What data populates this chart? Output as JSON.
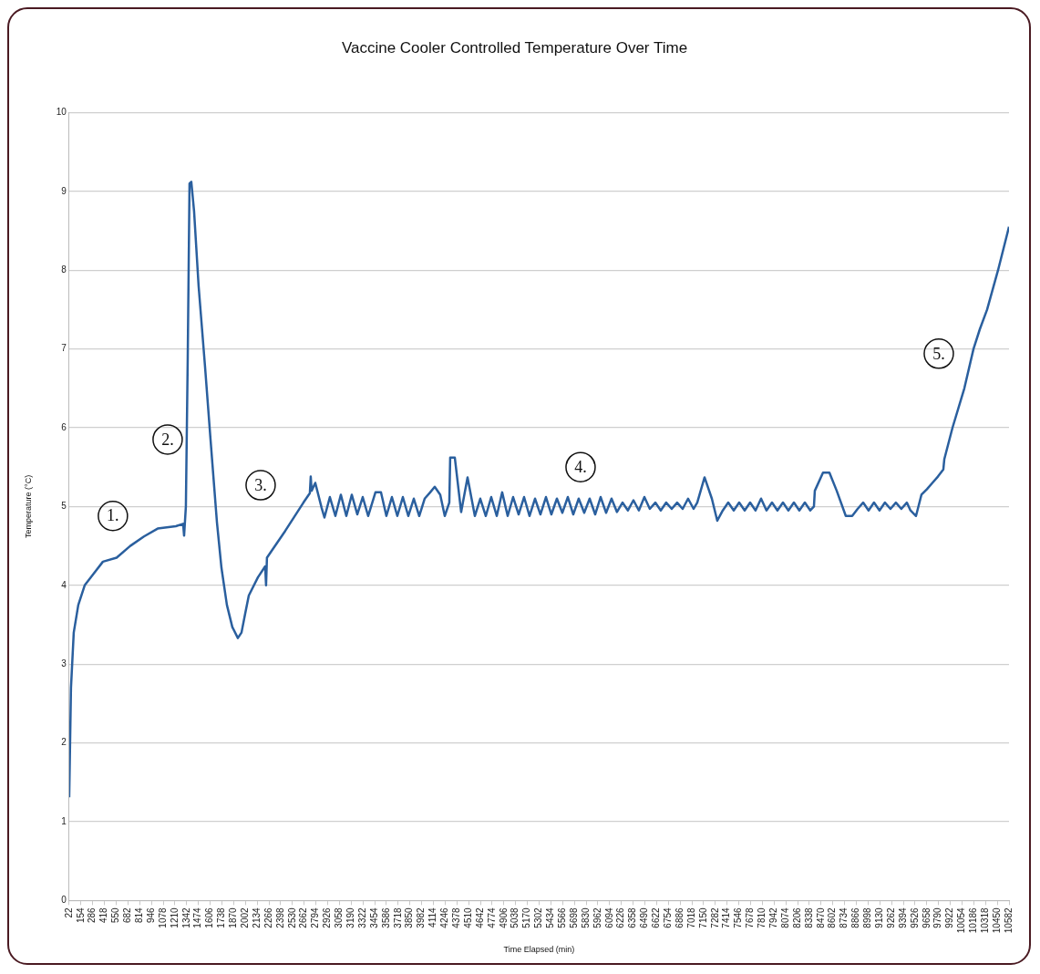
{
  "chart_data": {
    "type": "line",
    "title": "Vaccine Cooler Controlled Temperature Over Time",
    "xlabel": "Time Elapsed (min)",
    "ylabel": "Temperature (°C)",
    "x": [
      22,
      42,
      73,
      124,
      196,
      299,
      401,
      555,
      708,
      862,
      1016,
      1220,
      1302,
      1313,
      1333,
      1354,
      1374,
      1394,
      1425,
      1476,
      1548,
      1610,
      1682,
      1733,
      1794,
      1855,
      1917,
      1958,
      1999,
      2040,
      2142,
      2224,
      2234,
      2244,
      2449,
      2654,
      2726,
      2736,
      2746,
      2787,
      2859,
      2890,
      2951,
      3013,
      3074,
      3136,
      3197,
      3259,
      3320,
      3381,
      3463,
      3525,
      3586,
      3648,
      3709,
      3771,
      3832,
      3894,
      3955,
      4016,
      4078,
      4129,
      4191,
      4242,
      4293,
      4303,
      4355,
      4426,
      4498,
      4580,
      4641,
      4703,
      4764,
      4826,
      4887,
      4949,
      5010,
      5072,
      5133,
      5194,
      5256,
      5317,
      5379,
      5440,
      5502,
      5563,
      5625,
      5686,
      5747,
      5809,
      5870,
      5932,
      5993,
      6055,
      6116,
      6177,
      6239,
      6300,
      6362,
      6423,
      6485,
      6546,
      6608,
      6669,
      6730,
      6792,
      6853,
      6915,
      6976,
      7038,
      7079,
      7161,
      7243,
      7304,
      7366,
      7427,
      7489,
      7550,
      7612,
      7673,
      7734,
      7796,
      7857,
      7919,
      7980,
      8042,
      8103,
      8165,
      8226,
      8288,
      8349,
      8390,
      8400,
      8492,
      8564,
      8646,
      8748,
      8820,
      8881,
      8943,
      9004,
      9065,
      9127,
      9188,
      9250,
      9311,
      9372,
      9434,
      9475,
      9537,
      9598,
      9660,
      9721,
      9783,
      9844,
      9855,
      9947,
      10080,
      10183,
      10254,
      10336,
      10459,
      10582
    ],
    "series": [
      {
        "color": "#2a5f9e",
        "values": [
          1.31,
          2.7,
          3.4,
          3.75,
          4.0,
          4.15,
          4.3,
          4.35,
          4.5,
          4.62,
          4.72,
          4.75,
          4.78,
          4.63,
          5.0,
          6.9,
          9.1,
          9.12,
          8.75,
          7.8,
          6.78,
          5.85,
          4.8,
          4.22,
          3.75,
          3.47,
          3.33,
          3.4,
          3.64,
          3.87,
          4.1,
          4.24,
          4.0,
          4.35,
          4.69,
          5.05,
          5.17,
          5.38,
          5.2,
          5.3,
          4.98,
          4.86,
          5.12,
          4.88,
          5.15,
          4.88,
          5.15,
          4.9,
          5.12,
          4.88,
          5.18,
          5.18,
          4.88,
          5.12,
          4.88,
          5.12,
          4.88,
          5.1,
          4.88,
          5.1,
          5.18,
          5.25,
          5.15,
          4.88,
          5.05,
          5.62,
          5.62,
          4.93,
          5.37,
          4.88,
          5.1,
          4.88,
          5.12,
          4.88,
          5.18,
          4.88,
          5.12,
          4.9,
          5.12,
          4.88,
          5.1,
          4.9,
          5.12,
          4.9,
          5.1,
          4.92,
          5.12,
          4.9,
          5.1,
          4.92,
          5.1,
          4.9,
          5.12,
          4.92,
          5.1,
          4.93,
          5.05,
          4.95,
          5.08,
          4.95,
          5.12,
          4.97,
          5.05,
          4.95,
          5.05,
          4.97,
          5.05,
          4.97,
          5.1,
          4.97,
          5.05,
          5.37,
          5.1,
          4.82,
          4.95,
          5.05,
          4.95,
          5.05,
          4.95,
          5.05,
          4.95,
          5.1,
          4.95,
          5.05,
          4.95,
          5.05,
          4.95,
          5.05,
          4.95,
          5.05,
          4.95,
          5.0,
          5.2,
          5.43,
          5.43,
          5.2,
          4.88,
          4.88,
          4.97,
          5.05,
          4.95,
          5.05,
          4.95,
          5.05,
          4.97,
          5.05,
          4.97,
          5.05,
          4.95,
          4.88,
          5.15,
          5.22,
          5.3,
          5.38,
          5.47,
          5.6,
          6.0,
          6.5,
          7.0,
          7.25,
          7.5,
          8.0,
          8.55
        ]
      }
    ],
    "xlim": [
      22,
      10582
    ],
    "ylim": [
      0,
      10
    ],
    "xticks": [
      22,
      154,
      286,
      418,
      550,
      682,
      814,
      946,
      1078,
      1210,
      1342,
      1474,
      1606,
      1738,
      1870,
      2002,
      2134,
      2266,
      2398,
      2530,
      2662,
      2794,
      2926,
      3058,
      3190,
      3322,
      3454,
      3586,
      3718,
      3850,
      3982,
      4114,
      4246,
      4378,
      4510,
      4642,
      4774,
      4906,
      5038,
      5170,
      5302,
      5434,
      5566,
      5698,
      5830,
      5962,
      6094,
      6226,
      6358,
      6490,
      6622,
      6754,
      6886,
      7018,
      7150,
      7282,
      7414,
      7546,
      7678,
      7810,
      7942,
      8074,
      8206,
      8338,
      8470,
      8602,
      8734,
      8866,
      8998,
      9130,
      9262,
      9394,
      9526,
      9658,
      9790,
      9922,
      10054,
      10186,
      10318,
      10450,
      10582
    ],
    "yticks": [
      0,
      1,
      2,
      3,
      4,
      5,
      6,
      7,
      8,
      9,
      10
    ],
    "grid": "y",
    "legend": false,
    "marker": "none",
    "line_style": "solid",
    "annotations": [
      {
        "text": "1.",
        "x": 513,
        "y": 4.88
      },
      {
        "text": "2.",
        "x": 1128,
        "y": 5.85
      },
      {
        "text": "3.",
        "x": 2173,
        "y": 5.27
      },
      {
        "text": "4.",
        "x": 5768,
        "y": 5.5
      },
      {
        "text": "5.",
        "x": 9793,
        "y": 6.94
      }
    ]
  }
}
